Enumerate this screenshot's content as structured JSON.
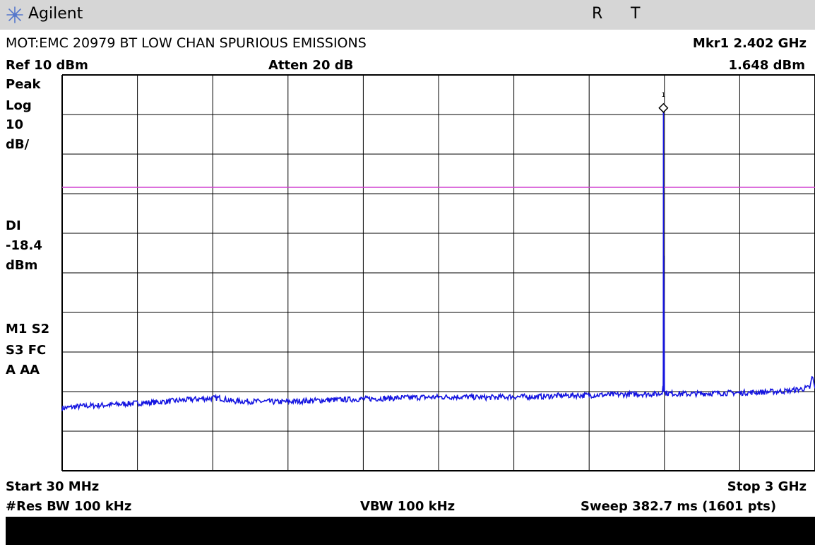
{
  "header": {
    "brand": "Agilent",
    "status_flags": [
      "R",
      "T"
    ],
    "title": "MOT:EMC 20979 BT LOW CHAN SPURIOUS EMISSIONS",
    "marker_label": "Mkr1  2.402 GHz",
    "marker_value": "1.648 dBm",
    "ref_level": "Ref 10 dBm",
    "attenuation": "Atten 20 dB"
  },
  "left_panel": {
    "detector": "Peak",
    "scale_type": "Log",
    "scale_value": "10",
    "scale_unit": "dB/",
    "display_line_label": "DI",
    "display_line_value": "-18.4",
    "display_line_unit": "dBm",
    "status_row1": "M1  S2",
    "status_row2": "S3  FC",
    "status_row3": "A   AA"
  },
  "footer": {
    "start": "Start 30 MHz",
    "stop": "Stop 3 GHz",
    "res_bw": "#Res BW 100 kHz",
    "vbw": "VBW 100 kHz",
    "sweep": "Sweep 382.7 ms (1601 pts)"
  },
  "colors": {
    "trace": "#1515e0",
    "display_line": "#d040d0",
    "grid": "#000000",
    "titlebar": "#d6d6d6"
  },
  "chart_data": {
    "type": "line",
    "x_unit": "MHz",
    "y_unit": "dBm",
    "xlim": [
      30,
      3000
    ],
    "ylim": [
      -90,
      10
    ],
    "x_divisions": 10,
    "y_divisions": 10,
    "grid": true,
    "display_line_dbm": -18.4,
    "marker": {
      "label": "1",
      "x": 2402,
      "y": 1.648
    },
    "series": [
      {
        "x": [
          30,
          100,
          200,
          300,
          400,
          500,
          580,
          650,
          700,
          800,
          900,
          1000,
          1100,
          1200,
          1300,
          1400,
          1500,
          1600,
          1700,
          1800,
          1900,
          2000,
          2100,
          2200,
          2300,
          2390,
          2400,
          2402,
          2404,
          2414,
          2500,
          2600,
          2700,
          2800,
          2900,
          2950,
          2980,
          2990,
          3000
        ],
        "y": [
          -74.2,
          -73.7,
          -73.4,
          -73.0,
          -72.7,
          -72.2,
          -71.8,
          -71.6,
          -72.4,
          -72.5,
          -72.6,
          -72.3,
          -72.1,
          -71.9,
          -71.7,
          -71.5,
          -71.4,
          -71.3,
          -71.5,
          -71.3,
          -71.3,
          -71.0,
          -70.9,
          -70.8,
          -70.6,
          -70.6,
          -70.0,
          1.6,
          -70.0,
          -70.4,
          -70.6,
          -70.4,
          -70.3,
          -70.1,
          -69.8,
          -69.3,
          -69.0,
          -66.0,
          -69.2
        ]
      }
    ]
  }
}
